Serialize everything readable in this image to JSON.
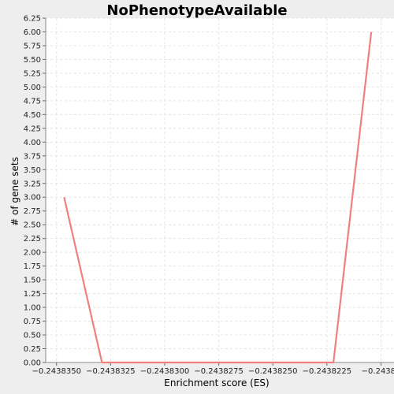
{
  "chart_data": {
    "type": "line",
    "title": "NoPhenotypeAvailable",
    "xlabel": "Enrichment score (ES)",
    "ylabel": "# of gene sets",
    "xlim": [
      -0.2438355,
      -0.2438194
    ],
    "ylim": [
      0,
      6.25
    ],
    "x_ticks": [
      -0.243835,
      -0.2438325,
      -0.24383,
      -0.2438275,
      -0.243825,
      -0.2438225,
      -0.24382
    ],
    "x_tick_labels": [
      "−0.2438350",
      "−0.2438325",
      "−0.2438300",
      "−0.2438275",
      "−0.2438250",
      "−0.2438225",
      "−0.24382"
    ],
    "y_ticks": [
      0,
      0.25,
      0.5,
      0.75,
      1,
      1.25,
      1.5,
      1.75,
      2,
      2.25,
      2.5,
      2.75,
      3,
      3.25,
      3.5,
      3.75,
      4,
      4.25,
      4.5,
      4.75,
      5,
      5.25,
      5.5,
      5.75,
      6,
      6.25
    ],
    "y_tick_labels": [
      "0.00",
      "0.25",
      "0.50",
      "0.75",
      "1.00",
      "1.25",
      "1.50",
      "1.75",
      "2.00",
      "2.25",
      "2.50",
      "2.75",
      "3.00",
      "3.25",
      "3.50",
      "3.75",
      "4.00",
      "4.25",
      "4.50",
      "4.75",
      "5.00",
      "5.25",
      "5.50",
      "5.75",
      "6.00",
      "6.25"
    ],
    "grid": true,
    "series": [
      {
        "color": "#f08080",
        "x": [
          -0.24383465,
          -0.2438329,
          -0.2438222,
          -0.24382045
        ],
        "y": [
          3,
          0,
          0,
          6
        ]
      }
    ]
  }
}
